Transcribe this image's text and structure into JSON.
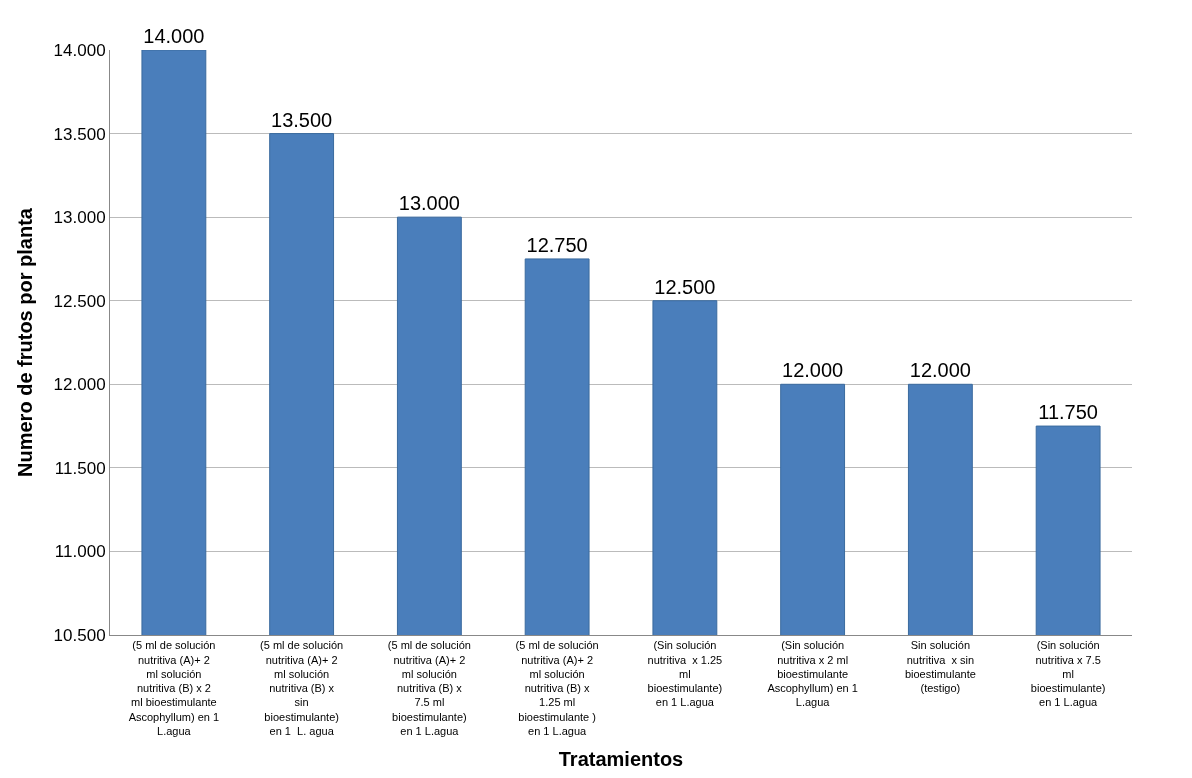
{
  "chart_data": {
    "type": "bar",
    "xlabel": "Tratamientos",
    "ylabel": "Numero de frutos por planta",
    "categories": [
      "(5 ml de solución nutritiva (A)+ 2 ml solución nutritiva (B) x 2 ml bioestimulante Ascophyllum) en 1 L.agua",
      "(5 ml de solución nutritiva (A)+ 2 ml solución nutritiva (B) x sin bioestimulante) en 1  L. agua",
      "(5 ml de solución nutritiva (A)+ 2 ml solución nutritiva (B) x 7.5 ml bioestimulante) en 1 L.agua",
      "(5 ml de solución nutritiva (A)+ 2 ml solución nutritiva (B) x 1.25 ml bioestimulante ) en 1 L.agua",
      "(Sin solución nutritiva  x 1.25 ml bioestimulante) en 1 L.agua",
      "(Sin solución nutritiva x 2 ml bioestimulante Ascophyllum) en 1 L.agua",
      "Sin solución nutritiva  x sin bioestimulante (testigo)",
      "(Sin solución nutritiva x 7.5 ml bioestimulante) en 1 L.agua"
    ],
    "values": [
      14.0,
      13.5,
      13.0,
      12.75,
      12.5,
      12.0,
      12.0,
      11.75
    ],
    "value_labels": [
      "14.000",
      "13.500",
      "13.000",
      "12.750",
      "12.500",
      "12.000",
      "12.000",
      "11.750"
    ],
    "color": "#4a7ebb",
    "ylim": [
      10.5,
      14.0
    ],
    "yticks": [
      {
        "value": 10.5,
        "label": "10.500"
      },
      {
        "value": 11.0,
        "label": "11.000"
      },
      {
        "value": 11.5,
        "label": "11.500"
      },
      {
        "value": 12.0,
        "label": "12.000"
      },
      {
        "value": 12.5,
        "label": "12.500"
      },
      {
        "value": 13.0,
        "label": "13.000"
      },
      {
        "value": 13.5,
        "label": "13.500"
      },
      {
        "value": 14.0,
        "label": "14.000"
      }
    ],
    "grid": "y"
  }
}
